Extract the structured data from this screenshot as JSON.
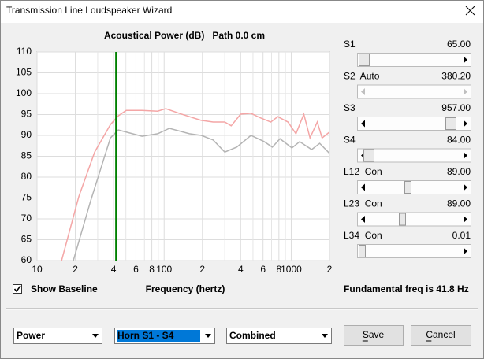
{
  "window": {
    "title": "Transmission Line Loudspeaker Wizard"
  },
  "chart_data": {
    "type": "line",
    "title": "Acoustical Power (dB)   Path 0.0 cm",
    "x_label": "Frequency (hertz)",
    "x_log": true,
    "xlim": [
      10,
      2000
    ],
    "ylim": [
      60,
      110
    ],
    "yticks": [
      60,
      65,
      70,
      75,
      80,
      85,
      90,
      95,
      100,
      105,
      110
    ],
    "xticks": [
      {
        "value": 10,
        "label": "10"
      },
      {
        "value": 20,
        "label": "2"
      },
      {
        "value": 40,
        "label": "4"
      },
      {
        "value": 60,
        "label": "6"
      },
      {
        "value": 80,
        "label": "8"
      },
      {
        "value": 100,
        "label": "100"
      },
      {
        "value": 200,
        "label": "2"
      },
      {
        "value": 400,
        "label": "4"
      },
      {
        "value": 600,
        "label": "6"
      },
      {
        "value": 800,
        "label": "8"
      },
      {
        "value": 1000,
        "label": "1000"
      },
      {
        "value": 2000,
        "label": "2"
      }
    ],
    "x_minor_ticks": [
      30,
      50,
      70,
      90,
      300,
      500,
      700,
      900
    ],
    "grid": true,
    "marker_x": 41.8,
    "marker_color": "#008000",
    "series": [
      {
        "color": "#f4a6a6",
        "x": [
          15.6,
          21.3,
          28.4,
          37.8,
          43.6,
          50.3,
          67,
          89,
          103,
          137,
          196,
          243,
          300,
          337,
          400,
          482,
          572,
          690,
          784,
          944,
          1089,
          1256,
          1405,
          1603,
          1750,
          2000
        ],
        "values": [
          60,
          75.3,
          86,
          92.6,
          94.7,
          96,
          96,
          95.8,
          96.4,
          95.1,
          93.6,
          93.2,
          93.2,
          92.3,
          95.1,
          95.3,
          94.2,
          93.2,
          94.5,
          93.2,
          90.4,
          95.1,
          89.4,
          93.2,
          89.4,
          90.8
        ]
      },
      {
        "color": "#b4b4b4",
        "x": [
          19.3,
          26.4,
          37.8,
          43.6,
          50.3,
          67,
          89,
          110,
          158,
          196,
          243,
          300,
          373,
          482,
          613,
          710,
          816,
          1012,
          1166,
          1448,
          1675,
          2000
        ],
        "values": [
          60,
          74.3,
          89.4,
          91.3,
          90.8,
          89.8,
          90.4,
          91.7,
          90.4,
          90,
          88.9,
          86,
          87.2,
          90,
          88.5,
          87.2,
          89.2,
          87,
          88.5,
          86.6,
          88.1,
          85.7
        ]
      }
    ]
  },
  "baseline_checkbox": {
    "label": "Show Baseline",
    "checked": true
  },
  "status": "Fundamental freq is 41.8 Hz",
  "status_color": "#008000",
  "sliders": [
    {
      "label": "S1",
      "color": "#d00000",
      "value": "65.00",
      "enabled": true
    },
    {
      "label": "S2  Auto",
      "color": "#d00000",
      "value": "380.20",
      "enabled": false
    },
    {
      "label": "S3",
      "color": "#d00000",
      "value": "957.00",
      "enabled": true
    },
    {
      "label": "S4",
      "color": "#d00000",
      "value": "84.00",
      "enabled": true
    },
    {
      "label": "L12  Con",
      "color": "#cc00cc",
      "value": "89.00",
      "enabled": true
    },
    {
      "label": "L23  Con",
      "color": "#d00000",
      "value": "89.00",
      "enabled": true
    },
    {
      "label": "L34  Con",
      "color": "#d00000",
      "value": "0.01",
      "enabled": true
    }
  ],
  "value_color": "#1a3fbf",
  "combos": [
    {
      "text": "Power",
      "selected": false
    },
    {
      "text": "Horn S1 - S4",
      "selected": true
    },
    {
      "text": "Combined",
      "selected": false
    }
  ],
  "buttons": [
    "Save",
    "Cancel"
  ]
}
